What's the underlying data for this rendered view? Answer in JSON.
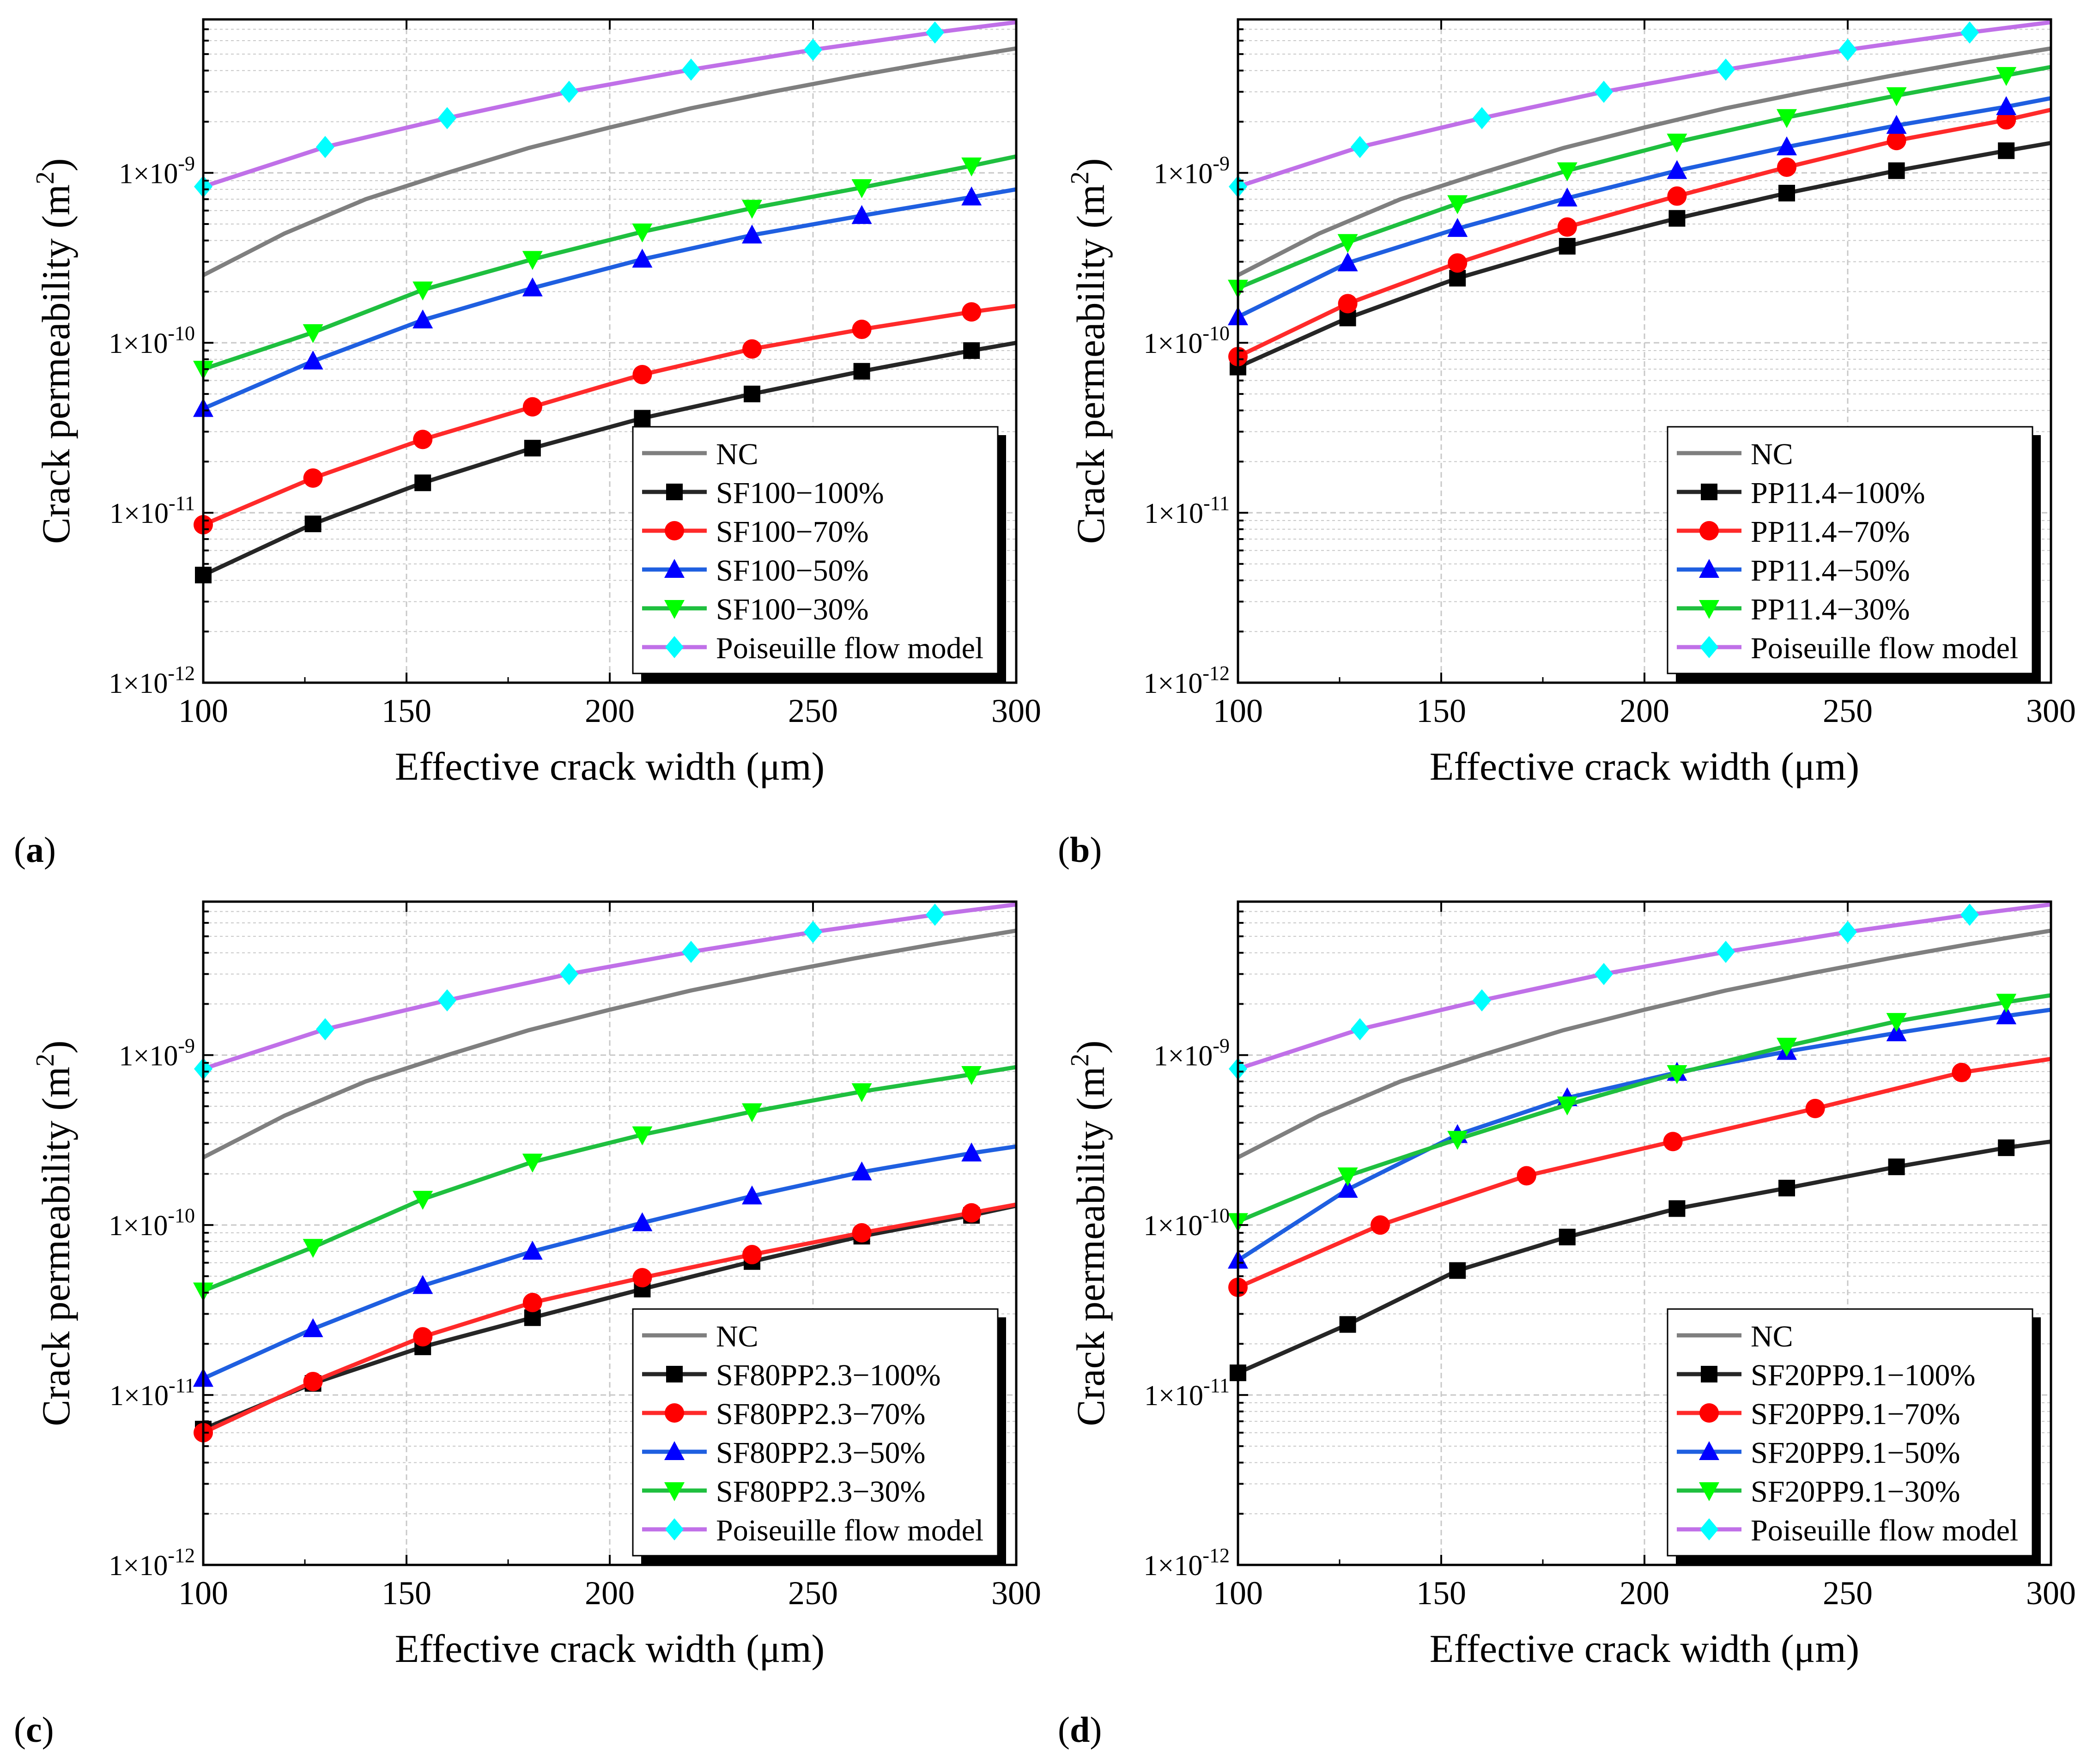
{
  "panels": [
    {
      "label_prefix": "(",
      "label_letter": "a",
      "label_suffix": ")"
    },
    {
      "label_prefix": "(",
      "label_letter": "b",
      "label_suffix": ")"
    },
    {
      "label_prefix": "(",
      "label_letter": "c",
      "label_suffix": ")"
    },
    {
      "label_prefix": "(",
      "label_letter": "d",
      "label_suffix": ")"
    }
  ],
  "colors": {
    "NC": "#7f7f7f",
    "c100": "#262626",
    "c70": "#ff2a2a",
    "c50": "#1f5fe0",
    "c30": "#1fbf3f",
    "poiseuille": "#c070e8",
    "marker100": "#000000",
    "marker70": "#ff0000",
    "marker50": "#0000ff",
    "marker30": "#00ff00",
    "markerPoiseuille": "#00ffff"
  },
  "chart_data": [
    {
      "type": "line",
      "xlabel": "Effective crack width (μm)",
      "ylabel": "Crack permeability (m²)",
      "x_scale": "linear",
      "y_scale": "log",
      "xlim": [
        100,
        300
      ],
      "ylim": [
        1e-12,
        8e-09
      ],
      "x_ticks": [
        "100",
        "150",
        "200",
        "250",
        "300"
      ],
      "y_ticks": [
        1e-12,
        1e-11,
        1e-10,
        1e-09
      ],
      "grid": true,
      "legend_position": "bottom-right",
      "series": [
        {
          "name": "NC",
          "marker": "none",
          "x": [
            100,
            120,
            140,
            160,
            180,
            200,
            220,
            240,
            260,
            280,
            300
          ],
          "y": [
            2.5e-10,
            4.4e-10,
            7e-10,
            1e-09,
            1.4e-09,
            1.85e-09,
            2.4e-09,
            3e-09,
            3.7e-09,
            4.5e-09,
            5.4e-09
          ]
        },
        {
          "name": "SF100−100%",
          "marker": "square",
          "x": [
            100,
            127,
            154,
            181,
            208,
            235,
            262,
            289,
            300
          ],
          "y": [
            4.3e-12,
            8.6e-12,
            1.5e-11,
            2.4e-11,
            3.6e-11,
            5e-11,
            6.8e-11,
            9e-11,
            1e-10
          ]
        },
        {
          "name": "SF100−70%",
          "marker": "circle",
          "x": [
            100,
            127,
            154,
            181,
            208,
            235,
            262,
            289,
            300
          ],
          "y": [
            8.5e-12,
            1.6e-11,
            2.7e-11,
            4.2e-11,
            6.5e-11,
            9.2e-11,
            1.2e-10,
            1.52e-10,
            1.65e-10
          ]
        },
        {
          "name": "SF100−50%",
          "marker": "triangle-up",
          "x": [
            100,
            127,
            154,
            181,
            208,
            235,
            262,
            289,
            300
          ],
          "y": [
            4.1e-11,
            7.8e-11,
            1.36e-10,
            2.1e-10,
            3.1e-10,
            4.3e-10,
            5.6e-10,
            7.2e-10,
            8e-10
          ]
        },
        {
          "name": "SF100−30%",
          "marker": "triangle-down",
          "x": [
            100,
            127,
            154,
            181,
            208,
            235,
            262,
            289,
            300
          ],
          "y": [
            7e-11,
            1.15e-10,
            2.05e-10,
            3.1e-10,
            4.5e-10,
            6.2e-10,
            8.2e-10,
            1.1e-09,
            1.25e-09
          ]
        },
        {
          "name": "Poiseuille flow model",
          "marker": "diamond",
          "x": [
            100,
            130,
            160,
            190,
            220,
            250,
            280,
            300
          ],
          "y": [
            8.3e-10,
            1.42e-09,
            2.1e-09,
            3e-09,
            4.05e-09,
            5.3e-09,
            6.7e-09,
            7.7e-09
          ]
        }
      ]
    },
    {
      "type": "line",
      "xlabel": "Effective crack width (μm)",
      "ylabel": "Crack permeability (m²)",
      "x_scale": "linear",
      "y_scale": "log",
      "xlim": [
        100,
        300
      ],
      "ylim": [
        1e-12,
        8e-09
      ],
      "x_ticks": [
        "100",
        "150",
        "200",
        "250",
        "300"
      ],
      "y_ticks": [
        1e-12,
        1e-11,
        1e-10,
        1e-09
      ],
      "grid": true,
      "legend_position": "bottom-right",
      "series": [
        {
          "name": "NC",
          "marker": "none",
          "x": [
            100,
            120,
            140,
            160,
            180,
            200,
            220,
            240,
            260,
            280,
            300
          ],
          "y": [
            2.5e-10,
            4.4e-10,
            7e-10,
            1e-09,
            1.4e-09,
            1.85e-09,
            2.4e-09,
            3e-09,
            3.7e-09,
            4.5e-09,
            5.4e-09
          ]
        },
        {
          "name": "PP11.4−100%",
          "marker": "square",
          "x": [
            100,
            127,
            154,
            181,
            208,
            235,
            262,
            289,
            300
          ],
          "y": [
            7.2e-11,
            1.4e-10,
            2.4e-10,
            3.7e-10,
            5.4e-10,
            7.6e-10,
            1.03e-09,
            1.35e-09,
            1.5e-09
          ]
        },
        {
          "name": "PP11.4−70%",
          "marker": "circle",
          "x": [
            100,
            127,
            154,
            181,
            208,
            235,
            262,
            289,
            300
          ],
          "y": [
            8.3e-11,
            1.7e-10,
            2.95e-10,
            4.8e-10,
            7.3e-10,
            1.08e-09,
            1.55e-09,
            2.05e-09,
            2.35e-09
          ]
        },
        {
          "name": "PP11.4−50%",
          "marker": "triangle-up",
          "x": [
            100,
            127,
            154,
            181,
            208,
            235,
            262,
            289,
            300
          ],
          "y": [
            1.42e-10,
            2.95e-10,
            4.7e-10,
            7.1e-10,
            1.03e-09,
            1.42e-09,
            1.9e-09,
            2.45e-09,
            2.75e-09
          ]
        },
        {
          "name": "PP11.4−30%",
          "marker": "triangle-down",
          "x": [
            100,
            127,
            154,
            181,
            208,
            235,
            262,
            289,
            300
          ],
          "y": [
            2.1e-10,
            3.9e-10,
            6.6e-10,
            1.03e-09,
            1.52e-09,
            2.12e-09,
            2.85e-09,
            3.75e-09,
            4.2e-09
          ]
        },
        {
          "name": "Poiseuille flow model",
          "marker": "diamond",
          "x": [
            100,
            130,
            160,
            190,
            220,
            250,
            280,
            300
          ],
          "y": [
            8.3e-10,
            1.42e-09,
            2.1e-09,
            3e-09,
            4.05e-09,
            5.3e-09,
            6.7e-09,
            7.7e-09
          ]
        }
      ]
    },
    {
      "type": "line",
      "xlabel": "Effective crack width (μm)",
      "ylabel": "Crack permeability (m²)",
      "x_scale": "linear",
      "y_scale": "log",
      "xlim": [
        100,
        300
      ],
      "ylim": [
        1e-12,
        8e-09
      ],
      "x_ticks": [
        "100",
        "150",
        "200",
        "250",
        "300"
      ],
      "y_ticks": [
        1e-12,
        1e-11,
        1e-10,
        1e-09
      ],
      "grid": true,
      "legend_position": "bottom-right",
      "series": [
        {
          "name": "NC",
          "marker": "none",
          "x": [
            100,
            120,
            140,
            160,
            180,
            200,
            220,
            240,
            260,
            280,
            300
          ],
          "y": [
            2.5e-10,
            4.4e-10,
            7e-10,
            1e-09,
            1.4e-09,
            1.85e-09,
            2.4e-09,
            3e-09,
            3.7e-09,
            4.5e-09,
            5.4e-09
          ]
        },
        {
          "name": "SF80PP2.3−100%",
          "marker": "square",
          "x": [
            100,
            127,
            154,
            181,
            208,
            235,
            262,
            289,
            300
          ],
          "y": [
            6.3e-12,
            1.17e-11,
            1.92e-11,
            2.85e-11,
            4.2e-11,
            6.1e-11,
            8.6e-11,
            1.14e-10,
            1.3e-10
          ]
        },
        {
          "name": "SF80PP2.3−70%",
          "marker": "circle",
          "x": [
            100,
            127,
            154,
            181,
            208,
            235,
            262,
            289,
            300
          ],
          "y": [
            6e-12,
            1.2e-11,
            2.2e-11,
            3.5e-11,
            4.9e-11,
            6.7e-11,
            9e-11,
            1.18e-10,
            1.32e-10
          ]
        },
        {
          "name": "SF80PP2.3−50%",
          "marker": "triangle-up",
          "x": [
            100,
            127,
            154,
            181,
            208,
            235,
            262,
            289,
            300
          ],
          "y": [
            1.25e-11,
            2.45e-11,
            4.4e-11,
            7e-11,
            1.03e-10,
            1.48e-10,
            2.05e-10,
            2.65e-10,
            2.9e-10
          ]
        },
        {
          "name": "SF80PP2.3−30%",
          "marker": "triangle-down",
          "x": [
            100,
            127,
            154,
            181,
            208,
            235,
            262,
            289,
            300
          ],
          "y": [
            4.1e-11,
            7.4e-11,
            1.42e-10,
            2.35e-10,
            3.4e-10,
            4.65e-10,
            6.1e-10,
            7.7e-10,
            8.5e-10
          ]
        },
        {
          "name": "Poiseuille flow model",
          "marker": "diamond",
          "x": [
            100,
            130,
            160,
            190,
            220,
            250,
            280,
            300
          ],
          "y": [
            8.3e-10,
            1.42e-09,
            2.1e-09,
            3e-09,
            4.05e-09,
            5.3e-09,
            6.7e-09,
            7.7e-09
          ]
        }
      ]
    },
    {
      "type": "line",
      "xlabel": "Effective crack width (μm)",
      "ylabel": "Crack permeability (m²)",
      "x_scale": "linear",
      "y_scale": "log",
      "xlim": [
        100,
        300
      ],
      "ylim": [
        1e-12,
        8e-09
      ],
      "x_ticks": [
        "100",
        "150",
        "200",
        "250",
        "300"
      ],
      "y_ticks": [
        1e-12,
        1e-11,
        1e-10,
        1e-09
      ],
      "grid": true,
      "legend_position": "bottom-right",
      "series": [
        {
          "name": "NC",
          "marker": "none",
          "x": [
            100,
            120,
            140,
            160,
            180,
            200,
            220,
            240,
            260,
            280,
            300
          ],
          "y": [
            2.5e-10,
            4.4e-10,
            7e-10,
            1e-09,
            1.4e-09,
            1.85e-09,
            2.4e-09,
            3e-09,
            3.7e-09,
            4.5e-09,
            5.4e-09
          ]
        },
        {
          "name": "SF20PP9.1−100%",
          "marker": "square",
          "x": [
            100,
            127,
            154,
            181,
            208,
            235,
            262,
            289,
            300
          ],
          "y": [
            1.35e-11,
            2.6e-11,
            5.4e-11,
            8.5e-11,
            1.25e-10,
            1.65e-10,
            2.2e-10,
            2.85e-10,
            3.1e-10
          ]
        },
        {
          "name": "SF20PP9.1−70%",
          "marker": "circle",
          "x": [
            100,
            135,
            171,
            207,
            242,
            278,
            300
          ],
          "y": [
            4.3e-11,
            1e-10,
            1.95e-10,
            3.1e-10,
            4.85e-10,
            7.9e-10,
            9.5e-10
          ]
        },
        {
          "name": "SF20PP9.1−50%",
          "marker": "triangle-up",
          "x": [
            100,
            127,
            154,
            181,
            208,
            235,
            262,
            289,
            300
          ],
          "y": [
            6.2e-11,
            1.62e-10,
            3.4e-10,
            5.6e-10,
            7.9e-10,
            1.05e-09,
            1.35e-09,
            1.7e-09,
            1.85e-09
          ]
        },
        {
          "name": "SF20PP9.1−30%",
          "marker": "triangle-down",
          "x": [
            100,
            127,
            154,
            181,
            208,
            235,
            262,
            289,
            300
          ],
          "y": [
            1.05e-10,
            1.95e-10,
            3.2e-10,
            5.1e-10,
            7.8e-10,
            1.13e-09,
            1.58e-09,
            2.05e-09,
            2.25e-09
          ]
        },
        {
          "name": "Poiseuille flow model",
          "marker": "diamond",
          "x": [
            100,
            130,
            160,
            190,
            220,
            250,
            280,
            300
          ],
          "y": [
            8.3e-10,
            1.42e-09,
            2.1e-09,
            3e-09,
            4.05e-09,
            5.3e-09,
            6.7e-09,
            7.7e-09
          ]
        }
      ]
    }
  ]
}
